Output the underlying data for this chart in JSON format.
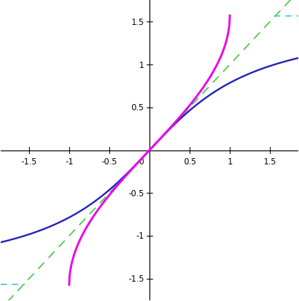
{
  "arcsin_color": "#ee00ee",
  "arctan_color": "#2222bb",
  "dashed_line_color": "#44cc44",
  "asymptote_color": "#44cccc",
  "background_color": "#ffffff",
  "axis_color": "#000000",
  "xlim": [
    -1.85,
    1.85
  ],
  "ylim": [
    -1.75,
    1.75
  ],
  "xticks": [
    -1.5,
    -1.0,
    -0.5,
    0.5,
    1.0,
    1.5
  ],
  "yticks": [
    -1.5,
    -1.0,
    -0.5,
    0.5,
    1.0,
    1.5
  ],
  "zero_label": "0",
  "pi_half": 1.5707963267948966,
  "arcsin_lw": 2.2,
  "arctan_lw": 1.8,
  "dashed_lw": 1.3,
  "asymptote_lw": 1.3,
  "tick_fontsize": 8.5,
  "tick_size": 0.035
}
